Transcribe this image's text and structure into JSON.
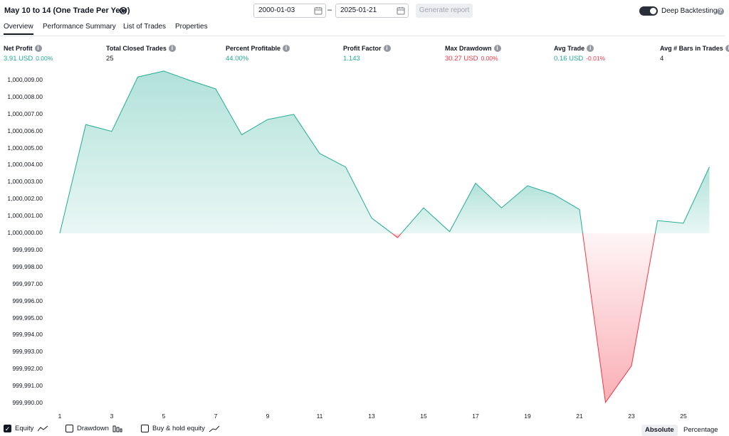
{
  "header": {
    "title": "May 10 to 14 (One Trade Per Year)",
    "start_date": "2000-01-03",
    "date_separator": "–",
    "end_date": "2025-01-21",
    "generate_label": "Generate report",
    "deep_backtesting_label": "Deep Backtesting",
    "deep_backtesting_on": true
  },
  "tabs": [
    {
      "label": "Overview",
      "active": true
    },
    {
      "label": "Performance Summary",
      "active": false
    },
    {
      "label": "List of Trades",
      "active": false
    },
    {
      "label": "Properties",
      "active": false
    }
  ],
  "metrics": [
    {
      "label": "Net Profit",
      "value": "3.91 USD",
      "pct": "0.00%",
      "tone": "pos"
    },
    {
      "label": "Total Closed Trades",
      "value": "25",
      "pct": "",
      "tone": "neutral"
    },
    {
      "label": "Percent Profitable",
      "value": "44.00%",
      "pct": "",
      "tone": "pos"
    },
    {
      "label": "Profit Factor",
      "value": "1.143",
      "pct": "",
      "tone": "pos"
    },
    {
      "label": "Max Drawdown",
      "value": "30.27 USD",
      "pct": "0.00%",
      "tone": "neg"
    },
    {
      "label": "Avg Trade",
      "value": "0.16 USD",
      "pct": "-0.01%",
      "tone": "pos",
      "pct_tone": "neg"
    },
    {
      "label": "Avg # Bars in Trades",
      "value": "4",
      "pct": "",
      "tone": "neutral"
    }
  ],
  "chart_data": {
    "type": "area",
    "baseline": 1000000.0,
    "x": [
      1,
      2,
      3,
      4,
      5,
      6,
      7,
      8,
      9,
      10,
      11,
      12,
      13,
      14,
      15,
      16,
      17,
      18,
      19,
      20,
      21,
      22,
      23,
      24,
      25,
      26
    ],
    "equity": [
      1000000.0,
      1000006.4,
      1000006.0,
      1000009.2,
      1000009.55,
      1000009.0,
      1000008.5,
      1000005.8,
      1000006.7,
      1000007.0,
      1000004.7,
      1000003.9,
      1000000.9,
      999999.75,
      1000001.5,
      1000000.1,
      1000002.95,
      1000001.5,
      1000002.8,
      1000002.3,
      1000001.4,
      999990.05,
      999992.2,
      1000000.75,
      1000000.6,
      1000003.91
    ],
    "y_ticks": [
      "1,000,009.00",
      "1,000,008.00",
      "1,000,007.00",
      "1,000,006.00",
      "1,000,005.00",
      "1,000,004.00",
      "1,000,003.00",
      "1,000,002.00",
      "1,000,001.00",
      "1,000,000.00",
      "999,999.00",
      "999,998.00",
      "999,997.00",
      "999,996.00",
      "999,995.00",
      "999,994.00",
      "999,993.00",
      "999,992.00",
      "999,991.00",
      "999,990.00"
    ],
    "y_tick_values": [
      1000009,
      1000008,
      1000007,
      1000006,
      1000005,
      1000004,
      1000003,
      1000002,
      1000001,
      1000000,
      999999,
      999998,
      999997,
      999996,
      999995,
      999994,
      999993,
      999992,
      999991,
      999990
    ],
    "x_ticks": [
      "1",
      "3",
      "5",
      "7",
      "9",
      "11",
      "13",
      "15",
      "17",
      "19",
      "21",
      "23",
      "25"
    ],
    "x_tick_values": [
      1,
      3,
      5,
      7,
      9,
      11,
      13,
      15,
      17,
      19,
      21,
      23,
      25
    ],
    "colors": {
      "positive": "#22ab94",
      "negative": "#f23645"
    }
  },
  "footer": {
    "equity_label": "Equity",
    "equity_checked": true,
    "drawdown_label": "Drawdown",
    "drawdown_checked": false,
    "buyhold_label": "Buy & hold equity",
    "buyhold_checked": false,
    "absolute_label": "Absolute",
    "percentage_label": "Percentage"
  }
}
